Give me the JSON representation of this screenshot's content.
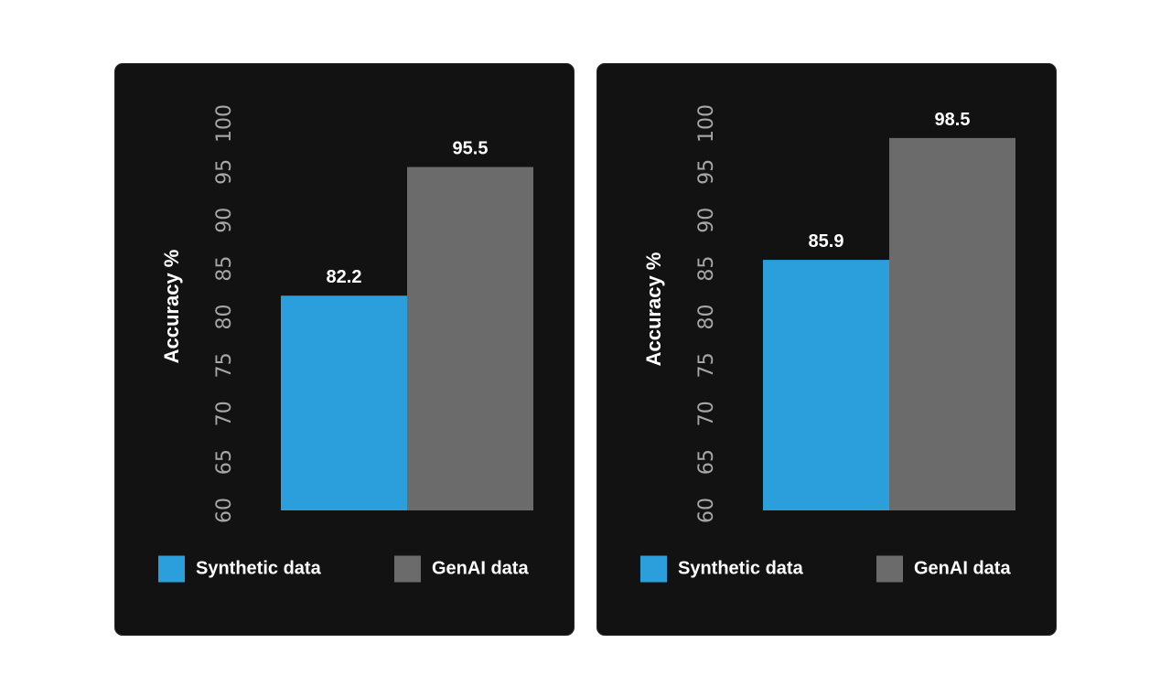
{
  "colors": {
    "card_background": "#121212",
    "synthetic": "#2a9fdc",
    "genai": "#6b6b6b",
    "tick_text": "#a6a6a6",
    "label_text": "#ffffff"
  },
  "chart_data": [
    {
      "type": "bar",
      "title": "",
      "xlabel": "",
      "ylabel": "Accuracy %",
      "ylim": [
        60,
        100
      ],
      "yticks": [
        "60",
        "65",
        "70",
        "75",
        "80",
        "85",
        "90",
        "95",
        "100"
      ],
      "legend_position": "bottom",
      "categories": [
        "Synthetic data",
        "GenAI data"
      ],
      "values": [
        82.2,
        95.5
      ],
      "value_labels": [
        "82.2",
        "95.5"
      ],
      "bar_colors": [
        "#2a9fdc",
        "#6b6b6b"
      ],
      "legend": [
        {
          "label": "Synthetic data",
          "color": "#2a9fdc"
        },
        {
          "label": "GenAI data",
          "color": "#6b6b6b"
        }
      ]
    },
    {
      "type": "bar",
      "title": "",
      "xlabel": "",
      "ylabel": "Accuracy %",
      "ylim": [
        60,
        100
      ],
      "yticks": [
        "60",
        "65",
        "70",
        "75",
        "80",
        "85",
        "90",
        "95",
        "100"
      ],
      "legend_position": "bottom",
      "categories": [
        "Synthetic data",
        "GenAI data"
      ],
      "values": [
        85.9,
        98.5
      ],
      "value_labels": [
        "85.9",
        "98.5"
      ],
      "bar_colors": [
        "#2a9fdc",
        "#6b6b6b"
      ],
      "legend": [
        {
          "label": "Synthetic data",
          "color": "#2a9fdc"
        },
        {
          "label": "GenAI data",
          "color": "#6b6b6b"
        }
      ]
    }
  ]
}
